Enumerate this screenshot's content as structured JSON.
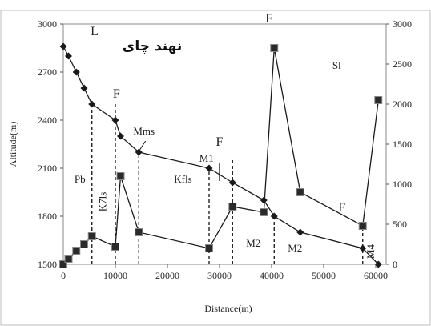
{
  "chart_data": {
    "type": "line",
    "title": "نهند چاى",
    "xlabel": "Distance(m)",
    "ylabel_left": "Altitude(m)",
    "ylabel_right": "",
    "x_ticks": [
      0,
      10000,
      20000,
      30000,
      40000,
      50000,
      60000
    ],
    "x_tick_labels": [
      "0",
      "10000",
      "20000",
      "30000",
      "40000",
      "50000",
      "60000"
    ],
    "y_left_ticks": [
      "1500",
      "1800",
      "2100",
      "2400",
      "2700",
      "3000"
    ],
    "y_right_ticks": [
      "0",
      "500",
      "1000",
      "1500",
      "2000",
      "2500",
      "3000"
    ],
    "xlim": [
      0,
      62000
    ],
    "ylim_left": [
      1500,
      3000
    ],
    "ylim_right": [
      0,
      3000
    ],
    "series": [
      {
        "marker": "diamond",
        "axis": "left",
        "x": [
          0,
          1000,
          2500,
          4000,
          5500,
          10000,
          11000,
          14500,
          28000,
          32500,
          38500,
          40500,
          45500,
          57500,
          60500
        ],
        "y": [
          2860,
          2800,
          2700,
          2600,
          2500,
          2400,
          2300,
          2200,
          2100,
          2010,
          1900,
          1800,
          1700,
          1600,
          1500
        ]
      },
      {
        "marker": "square",
        "axis": "right",
        "x": [
          0,
          1000,
          2500,
          4000,
          5500,
          10000,
          11000,
          14500,
          28000,
          32500,
          38500,
          40500,
          45500,
          57500,
          60500
        ],
        "y": [
          0,
          70,
          170,
          250,
          350,
          220,
          1100,
          400,
          200,
          720,
          650,
          2700,
          900,
          480,
          2050
        ]
      }
    ],
    "boundaries": [
      {
        "x": 5500,
        "from": 1500,
        "to": 2500
      },
      {
        "x": 10000,
        "from": 1500,
        "to": 2500
      },
      {
        "x": 14500,
        "from": 1500,
        "to": 2200
      },
      {
        "x": 28000,
        "from": 1500,
        "to": 2110
      },
      {
        "x": 32500,
        "from": 1500,
        "to": 2150
      },
      {
        "x": 40500,
        "from": 1500,
        "to": 1800
      },
      {
        "x": 57500,
        "from": 1500,
        "to": 1720
      }
    ],
    "solid_boundary": {
      "x": 30000,
      "from": 2020,
      "to": 2130
    },
    "annotations": [
      {
        "text": "L",
        "x": 6000,
        "y": 2930,
        "size": "big"
      },
      {
        "text": "F",
        "x": 10200,
        "y": 2540,
        "size": "big"
      },
      {
        "text": "Mms",
        "x": 15500,
        "y": 2310,
        "size": "normal"
      },
      {
        "text": "M1",
        "x": 27500,
        "y": 2140,
        "size": "normal"
      },
      {
        "text": "F",
        "x": 30000,
        "y": 2240,
        "size": "big"
      },
      {
        "text": "F",
        "x": 39500,
        "y": 3010,
        "size": "big"
      },
      {
        "text": "Sl",
        "x": 52500,
        "y": 2720,
        "size": "normal"
      },
      {
        "text": "F",
        "x": 53500,
        "y": 1830,
        "size": "big"
      },
      {
        "text": "Pb",
        "x": 3200,
        "y": 2010,
        "size": "normal"
      },
      {
        "text": "Kfls",
        "x": 23000,
        "y": 2010,
        "size": "normal"
      },
      {
        "text": "M2",
        "x": 36500,
        "y": 1610,
        "size": "normal"
      },
      {
        "text": "M2",
        "x": 44500,
        "y": 1580,
        "size": "normal"
      }
    ],
    "rotated_annotations": [
      {
        "text": "K7ls",
        "x": 8200,
        "y": 1890
      },
      {
        "text": "M4",
        "x": 59700,
        "y": 1580
      }
    ]
  }
}
